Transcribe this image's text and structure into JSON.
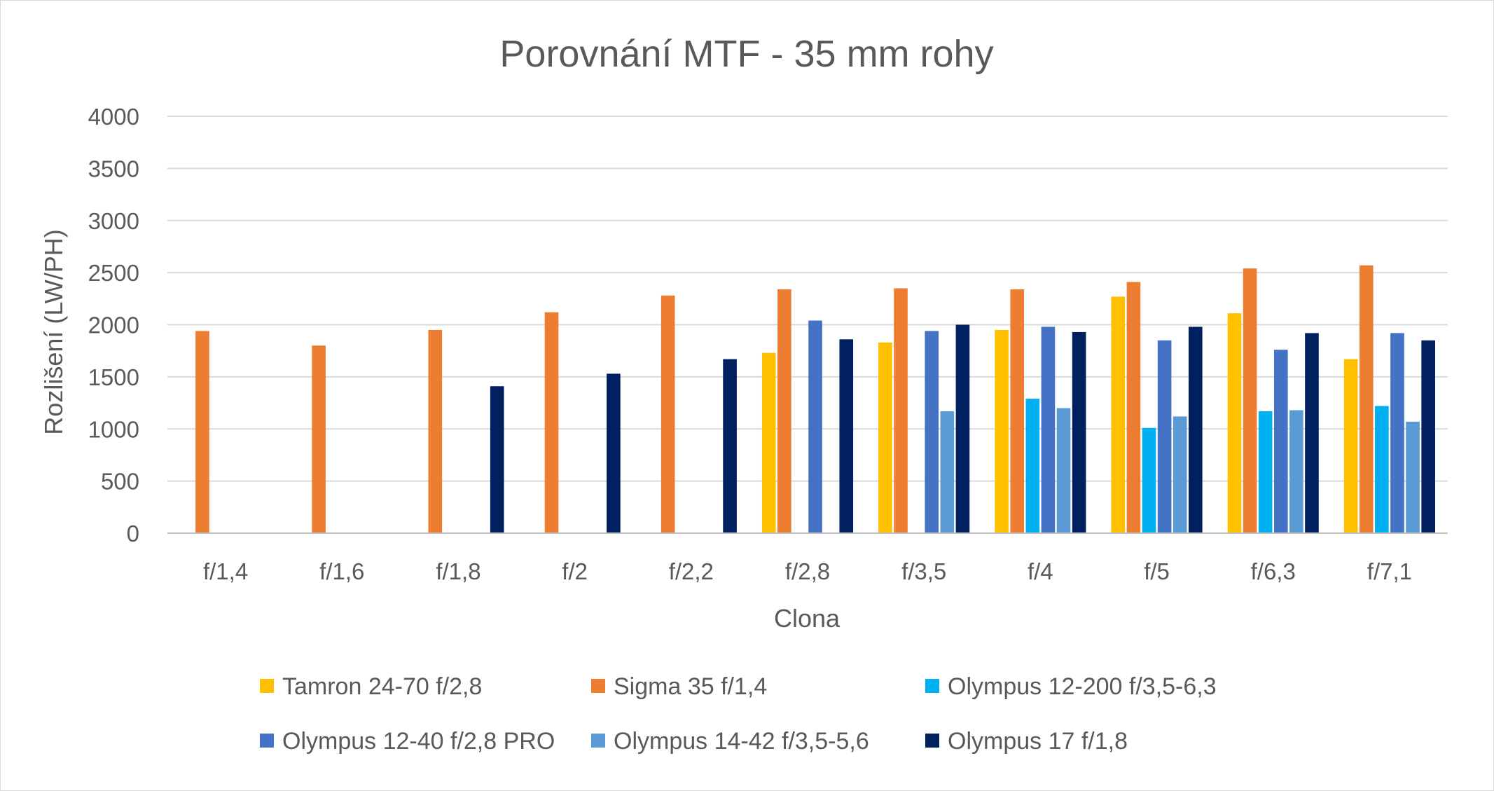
{
  "chart_data": {
    "type": "bar",
    "title": "Porovnání MTF - 35 mm rohy",
    "xlabel": "Clona",
    "ylabel": "Rozlišení (LW/PH)",
    "ylim": [
      0,
      4000
    ],
    "yticks": [
      "0",
      "500",
      "1000",
      "1500",
      "2000",
      "2500",
      "3000",
      "3500",
      "4000"
    ],
    "grid": true,
    "legend_position": "bottom",
    "categories": [
      "f/1,4",
      "f/1,6",
      "f/1,8",
      "f/2",
      "f/2,2",
      "f/2,8",
      "f/3,5",
      "f/4",
      "f/5",
      "f/6,3",
      "f/7,1"
    ],
    "series": [
      {
        "name": "Tamron 24-70 f/2,8",
        "color": "#FFC000",
        "values": [
          null,
          null,
          null,
          null,
          null,
          1730,
          1830,
          1950,
          2270,
          2110,
          1670
        ]
      },
      {
        "name": "Sigma 35 f/1,4",
        "color": "#ED7D31",
        "values": [
          1940,
          1800,
          1950,
          2120,
          2280,
          2340,
          2350,
          2340,
          2410,
          2540,
          2570
        ]
      },
      {
        "name": "Olympus 12-200 f/3,5-6,3",
        "color": "#00B0F0",
        "values": [
          null,
          null,
          null,
          null,
          null,
          null,
          null,
          1290,
          1010,
          1170,
          1220
        ]
      },
      {
        "name": "Olympus 12-40 f/2,8 PRO",
        "color": "#4472C4",
        "values": [
          null,
          null,
          null,
          null,
          null,
          2040,
          1940,
          1980,
          1850,
          1760,
          1920
        ]
      },
      {
        "name": "Olympus 14-42 f/3,5-5,6",
        "color": "#5B9BD5",
        "values": [
          null,
          null,
          null,
          null,
          null,
          null,
          1170,
          1200,
          1120,
          1180,
          1070
        ]
      },
      {
        "name": "Olympus 17 f/1,8",
        "color": "#002060",
        "values": [
          null,
          null,
          1410,
          1530,
          1670,
          1860,
          2000,
          1930,
          1980,
          1920,
          1850
        ]
      }
    ]
  }
}
